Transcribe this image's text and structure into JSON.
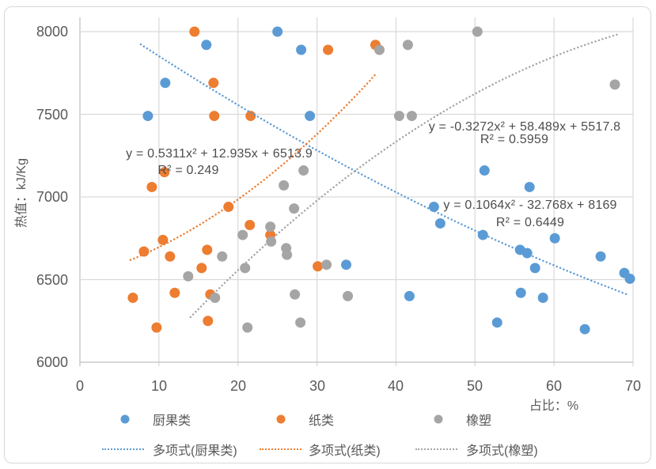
{
  "chart_data": {
    "type": "scatter",
    "title": "",
    "xlabel": "占比：%",
    "ylabel": "热值：kJ/Kg",
    "xlim": [
      0,
      70
    ],
    "ylim": [
      6000,
      8000
    ],
    "x_ticks": [
      0,
      10,
      20,
      30,
      40,
      50,
      60,
      70
    ],
    "y_ticks": [
      8000,
      7500,
      7000,
      6500,
      6000
    ],
    "grid": true,
    "legend_position": "bottom",
    "colors": {
      "grid": "#d9d9d9",
      "axis": "#bfbfbf",
      "text": "#595959"
    },
    "series": [
      {
        "name": "厨果类",
        "color": "#5B9BD5",
        "points": [
          [
            8.6,
            7490
          ],
          [
            10.8,
            7690
          ],
          [
            16,
            7920
          ],
          [
            25,
            8000
          ],
          [
            28,
            7890
          ],
          [
            29.1,
            7490
          ],
          [
            33.7,
            6590
          ],
          [
            41.7,
            6400
          ],
          [
            44.8,
            6940
          ],
          [
            45.6,
            6840
          ],
          [
            51.2,
            7160
          ],
          [
            51,
            6770
          ],
          [
            52.8,
            6240
          ],
          [
            55.7,
            6680
          ],
          [
            55.8,
            6420
          ],
          [
            56.6,
            6660
          ],
          [
            56.9,
            7060
          ],
          [
            57.6,
            6570
          ],
          [
            58.6,
            6390
          ],
          [
            60.1,
            6750
          ],
          [
            63.9,
            6200
          ],
          [
            65.9,
            6640
          ],
          [
            68.9,
            6540
          ],
          [
            69.6,
            6505
          ]
        ]
      },
      {
        "name": "纸类",
        "color": "#ED7D31",
        "points": [
          [
            6.7,
            6390
          ],
          [
            8.1,
            6670
          ],
          [
            9.1,
            7060
          ],
          [
            9.7,
            6210
          ],
          [
            10.5,
            6740
          ],
          [
            10.7,
            7150
          ],
          [
            11.4,
            6640
          ],
          [
            12,
            6420
          ],
          [
            14.5,
            8000
          ],
          [
            15.4,
            6570
          ],
          [
            16.1,
            6680
          ],
          [
            16.2,
            6250
          ],
          [
            16.5,
            6410
          ],
          [
            16.9,
            7690
          ],
          [
            17,
            7490
          ],
          [
            18.8,
            6940
          ],
          [
            21.5,
            6830
          ],
          [
            21.6,
            7490
          ],
          [
            24.1,
            6770
          ],
          [
            30.1,
            6580
          ],
          [
            31.4,
            7890
          ],
          [
            37.4,
            7920
          ]
        ]
      },
      {
        "name": "橡塑",
        "color": "#A5A5A5",
        "points": [
          [
            13.7,
            6520
          ],
          [
            17.1,
            6390
          ],
          [
            18,
            6640
          ],
          [
            20.6,
            6770
          ],
          [
            20.9,
            6570
          ],
          [
            21.2,
            6210
          ],
          [
            24.1,
            6820
          ],
          [
            24.2,
            6730
          ],
          [
            25.8,
            7070
          ],
          [
            26.1,
            6690
          ],
          [
            26.2,
            6650
          ],
          [
            27.1,
            6930
          ],
          [
            27.2,
            6410
          ],
          [
            27.9,
            6240
          ],
          [
            28.3,
            7160
          ],
          [
            31.2,
            6590
          ],
          [
            33.9,
            6400
          ],
          [
            37.9,
            7890
          ],
          [
            40.4,
            7490
          ],
          [
            41.5,
            7920
          ],
          [
            42,
            7490
          ],
          [
            50.3,
            8000
          ],
          [
            67.7,
            7680
          ]
        ]
      }
    ],
    "trendlines": [
      {
        "name": "多项式(厨果类)",
        "color": "#5B9BD5",
        "coeffs": [
          0.1064,
          -32.768,
          8169
        ],
        "x_range": [
          7.7,
          69.5
        ],
        "equation": "y = 0.1064x² - 32.768x + 8169",
        "r2": "R² = 0.6449"
      },
      {
        "name": "多项式(纸类)",
        "color": "#ED7D31",
        "coeffs": [
          0.5311,
          12.935,
          6513.9
        ],
        "x_range": [
          6.4,
          37.6
        ],
        "equation": "y = 0.5311x² + 12.935x + 6513.9",
        "r2": "R² = 0.249"
      },
      {
        "name": "多项式(橡塑)",
        "color": "#A5A5A5",
        "coeffs": [
          -0.3272,
          58.489,
          5517.8
        ],
        "x_range": [
          14,
          68
        ],
        "equation": "y = -0.3272x² + 58.489x + 5517.8",
        "r2": "R² = 0.5959"
      }
    ]
  }
}
